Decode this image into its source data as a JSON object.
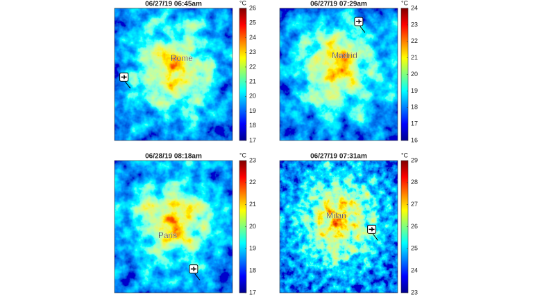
{
  "chart_data": [
    {
      "type": "heatmap",
      "title": "06/27/19 06:45am",
      "annotation": "Rome",
      "unit": "°C",
      "ylim": [
        17,
        26
      ],
      "yticks": [
        17,
        18,
        19,
        20,
        21,
        22,
        23,
        24,
        25,
        26
      ]
    },
    {
      "type": "heatmap",
      "title": "06/27/19 07:29am",
      "annotation": "Madrid",
      "unit": "°C",
      "ylim": [
        16,
        24
      ],
      "yticks": [
        16,
        17,
        18,
        19,
        20,
        21,
        22,
        23,
        24
      ]
    },
    {
      "type": "heatmap",
      "title": "06/28/19 08:18am",
      "annotation": "Paris",
      "unit": "°C",
      "ylim": [
        17,
        23
      ],
      "yticks": [
        17,
        18,
        19,
        20,
        21,
        22,
        23
      ]
    },
    {
      "type": "heatmap",
      "title": "06/27/19 07:31am",
      "annotation": "Milan",
      "unit": "°C",
      "ylim": [
        23,
        29
      ],
      "yticks": [
        23,
        24,
        25,
        26,
        27,
        28,
        29
      ]
    }
  ]
}
